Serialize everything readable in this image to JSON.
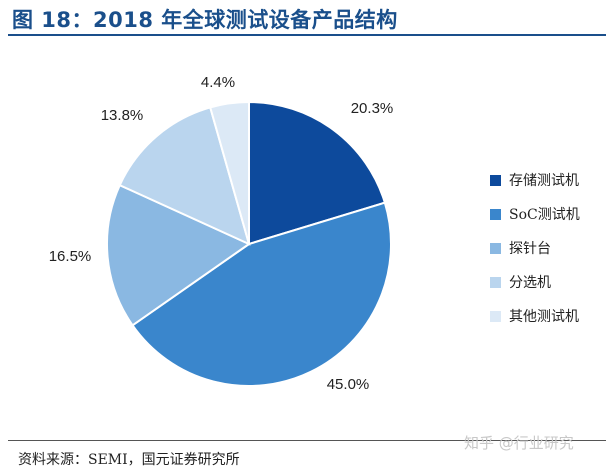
{
  "title": "图 18：2018 年全球测试设备产品结构",
  "chart_data": {
    "type": "pie",
    "title": "",
    "slices": [
      {
        "label": "存储测试机",
        "value": 20.3,
        "value_label": "20.3%",
        "color": "#0d4a9c"
      },
      {
        "label": "SoC测试机",
        "value": 45.0,
        "value_label": "45.0%",
        "color": "#3a86cc"
      },
      {
        "label": "探针台",
        "value": 16.5,
        "value_label": "16.5%",
        "color": "#8ab8e2"
      },
      {
        "label": "分选机",
        "value": 13.8,
        "value_label": "13.8%",
        "color": "#bad5ee"
      },
      {
        "label": "其他测试机",
        "value": 4.4,
        "value_label": "4.4%",
        "color": "#dce9f6"
      }
    ],
    "legend_position": "right"
  },
  "source": "资料来源：SEMI，国元证券研究所",
  "watermark": "知乎 @行业研究"
}
